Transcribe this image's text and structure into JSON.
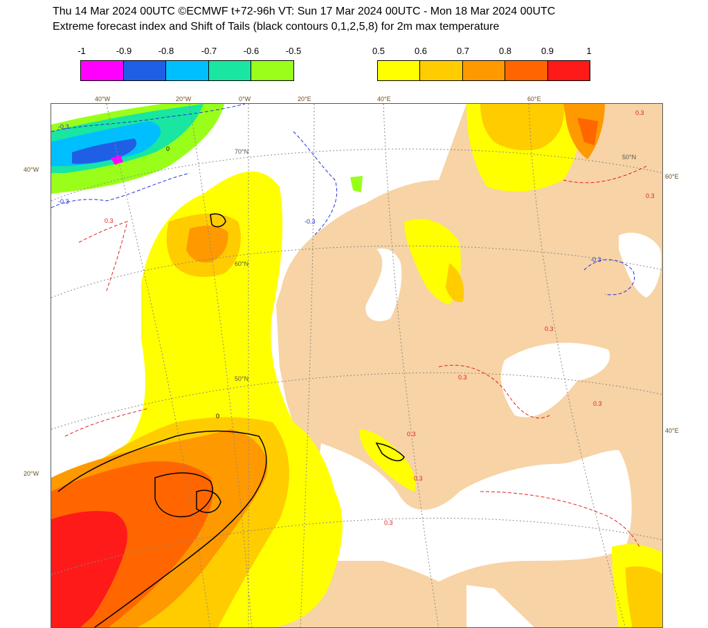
{
  "header": {
    "line1": "Thu 14 Mar 2024 00UTC ©ECMWF t+72-96h  VT: Sun 17 Mar 2024 00UTC - Mon 18 Mar 2024 00UTC",
    "line2": "Extreme forecast index and Shift of Tails (black contours 0,1,2,5,8) for 2m max temperature"
  },
  "legend": {
    "negative": {
      "ticks": [
        "-1",
        "-0.9",
        "-0.8",
        "-0.7",
        "-0.6",
        "-0.5"
      ],
      "colors": [
        "#ff00ff",
        "#1f5fe6",
        "#00bfff",
        "#19e6a0",
        "#99ff1a"
      ]
    },
    "positive": {
      "ticks": [
        "0.5",
        "0.6",
        "0.7",
        "0.8",
        "0.9",
        "1"
      ],
      "colors": [
        "#ffff00",
        "#ffcc00",
        "#ff9900",
        "#ff6600",
        "#ff1a1a"
      ]
    }
  },
  "map": {
    "colors": {
      "land_low": "#f7d3a5",
      "sea": "#ffffff",
      "efi_05": "#ffff00",
      "efi_06": "#ffcc00",
      "efi_07": "#ff9900",
      "efi_08": "#ff6600",
      "efi_09": "#ff1a1a",
      "efi_neg_05": "#99ff1a",
      "efi_neg_06": "#19e6a0",
      "efi_neg_07": "#00bfff",
      "efi_neg_08": "#1f5fe6",
      "efi_neg_10": "#ff00ff",
      "contour_pos": "#e02020",
      "contour_neg": "#2030e0",
      "graticule": "#888888"
    },
    "border_labels": {
      "top": [
        "40°W",
        "20°W",
        "0°W",
        "20°E",
        "40°E",
        "60°E"
      ],
      "left": [
        "40°W",
        "20°W"
      ],
      "right": [
        "60°E",
        "40°E"
      ]
    },
    "lat_labels": [
      "70°N",
      "60°N",
      "50°N",
      "50°N"
    ],
    "contour_labels": [
      "0.3",
      "-0.3",
      "0"
    ]
  }
}
